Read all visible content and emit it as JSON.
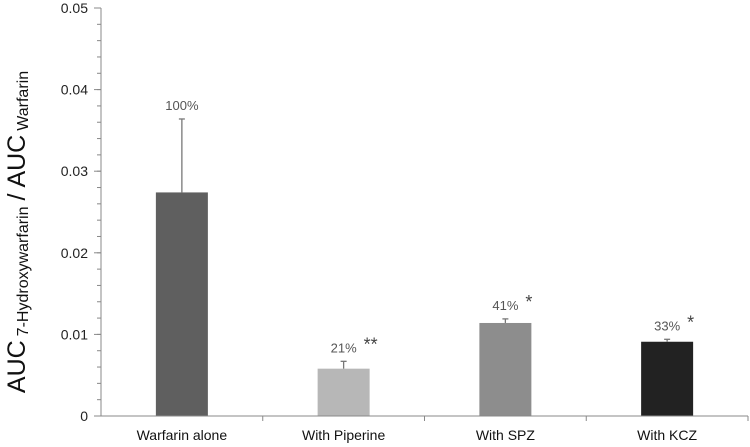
{
  "chart_data": {
    "type": "bar",
    "categories": [
      "Warfarin alone",
      "With Piperine",
      "With SPZ",
      "With KCZ"
    ],
    "values": [
      0.0274,
      0.0058,
      0.0114,
      0.0091
    ],
    "errors": [
      0.009,
      0.0009,
      0.0005,
      0.0003
    ],
    "bar_colors": [
      "#5f5f5f",
      "#b7b7b7",
      "#8d8d8d",
      "#222222"
    ],
    "data_labels": [
      "100%",
      "21%",
      "41%",
      "33%"
    ],
    "significance": [
      "",
      "**",
      "*",
      "*"
    ],
    "ylim": [
      0,
      0.05
    ],
    "yticks": [
      "0",
      "0.01",
      "0.02",
      "0.03",
      "0.04",
      "0.05"
    ],
    "ylabel": {
      "main1": "AUC",
      "sub1": "7-Hydroxywarfarin",
      "slash": "/",
      "main2": "AUC",
      "sub2": "Warfarin"
    },
    "xlabel": "",
    "title": "",
    "grid": false,
    "legend": "none"
  }
}
